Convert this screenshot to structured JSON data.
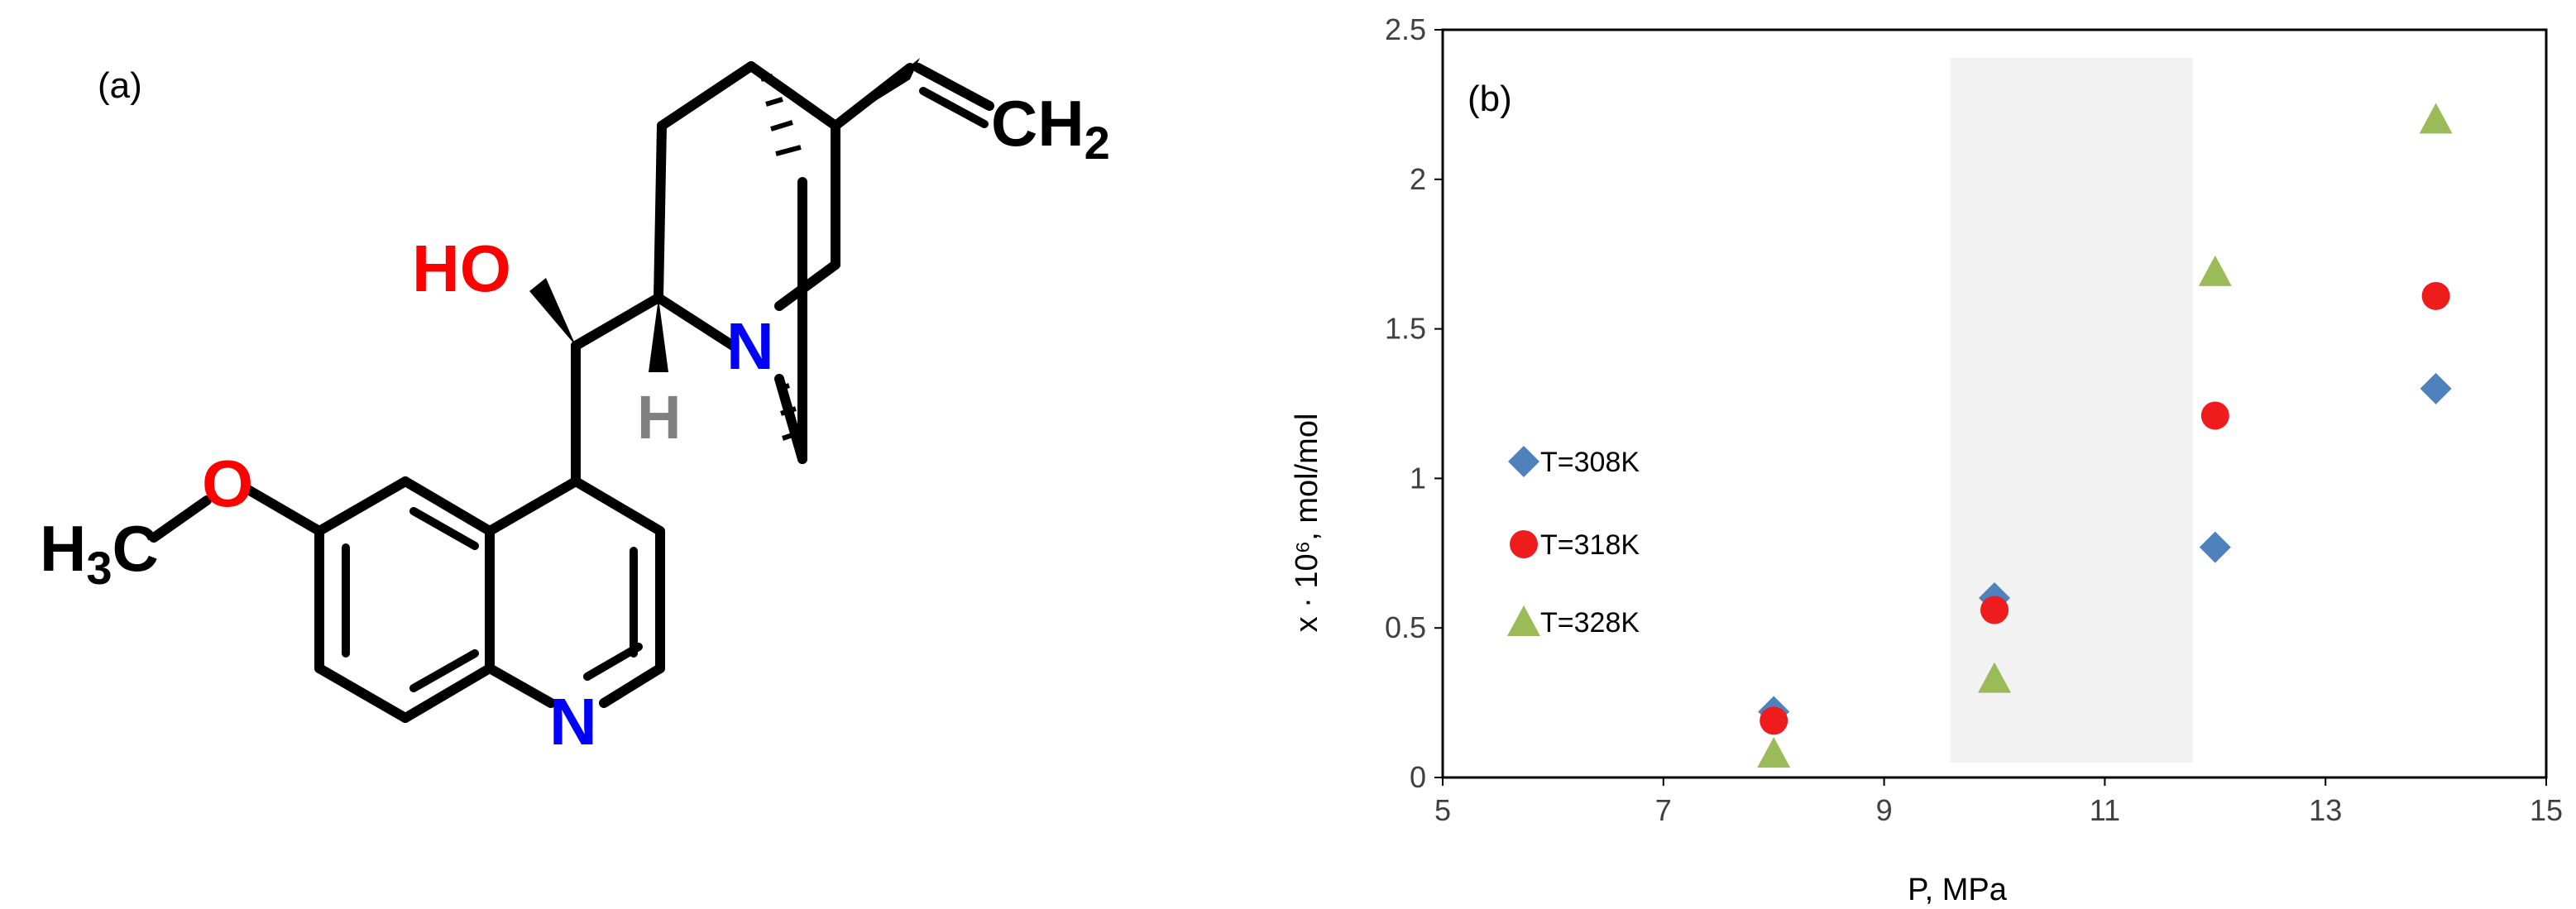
{
  "panel_a": {
    "label": "(a)",
    "atoms": {
      "hydroxyl": "HO",
      "hydrogen": "H",
      "amine_n": "N",
      "ring_n": "N",
      "oxygen": "O",
      "methyl": "H3C",
      "methylene": "CH2"
    },
    "colors": {
      "oxygen": "#ff0000",
      "nitrogen": "#0000ff",
      "hydrogen": "#808080",
      "bond": "#000000"
    }
  },
  "panel_b": {
    "label": "(b)",
    "shaded_region": {
      "x_from": 9.6,
      "x_to": 11.8,
      "color": "#f2f2f2"
    }
  },
  "chart_data": {
    "type": "scatter",
    "xlabel": "P, MPa",
    "ylabel": "x · 10⁶, mol/mol",
    "xlim": [
      5,
      15
    ],
    "ylim": [
      0,
      2.5
    ],
    "x_ticks": [
      "5",
      "7",
      "9",
      "11",
      "13",
      "15"
    ],
    "y_ticks": [
      "0",
      "0.5",
      "1",
      "1.5",
      "2",
      "2.5"
    ],
    "legend_position": "left",
    "grid": false,
    "series": [
      {
        "name": "T=308K",
        "marker": "diamond",
        "color": "#4f81bd",
        "points": [
          {
            "x": 8,
            "y": 0.22
          },
          {
            "x": 10,
            "y": 0.6
          },
          {
            "x": 12,
            "y": 0.77
          },
          {
            "x": 14,
            "y": 1.3
          }
        ]
      },
      {
        "name": "T=318K",
        "marker": "circle",
        "color": "#ee1c1c",
        "points": [
          {
            "x": 8,
            "y": 0.19
          },
          {
            "x": 10,
            "y": 0.56
          },
          {
            "x": 12,
            "y": 1.21
          },
          {
            "x": 14,
            "y": 1.61
          }
        ]
      },
      {
        "name": "T=328K",
        "marker": "triangle",
        "color": "#9bbb59",
        "points": [
          {
            "x": 8,
            "y": 0.08
          },
          {
            "x": 10,
            "y": 0.33
          },
          {
            "x": 12,
            "y": 1.69
          },
          {
            "x": 14,
            "y": 2.2
          }
        ]
      }
    ]
  }
}
